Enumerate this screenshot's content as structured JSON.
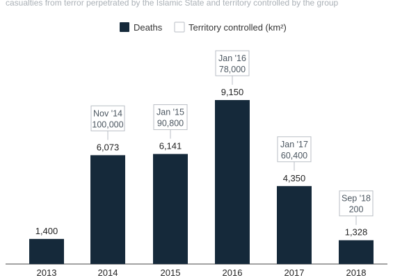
{
  "subtitle": "casualties from terror perpetrated by the Islamic State and territory controlled by the group",
  "legend": {
    "deaths_label": "Deaths",
    "territory_label": "Territory controlled (km²)"
  },
  "colors": {
    "bar": "#15293a",
    "box_border": "#b8bec4",
    "connector": "#b8bec4",
    "axis": "#444444"
  },
  "chart_data": {
    "type": "bar",
    "categories": [
      "2013",
      "2014",
      "2015",
      "2016",
      "2017",
      "2018"
    ],
    "series": [
      {
        "name": "Deaths",
        "values": [
          1400,
          6073,
          6141,
          9150,
          4350,
          1328
        ],
        "labels": [
          "1,400",
          "6,073",
          "6,141",
          "9,150",
          "4,350",
          "1,328"
        ]
      }
    ],
    "territory_annotations": [
      null,
      {
        "date": "Nov '14",
        "value": "100,000"
      },
      {
        "date": "Jan '15",
        "value": "90,800"
      },
      {
        "date": "Jan '16",
        "value": "78,000"
      },
      {
        "date": "Jan '17",
        "value": "60,400"
      },
      {
        "date": "Sep '18",
        "value": "200"
      }
    ],
    "ylim": [
      0,
      9150
    ],
    "grid": false,
    "legend_position": "top-center"
  }
}
